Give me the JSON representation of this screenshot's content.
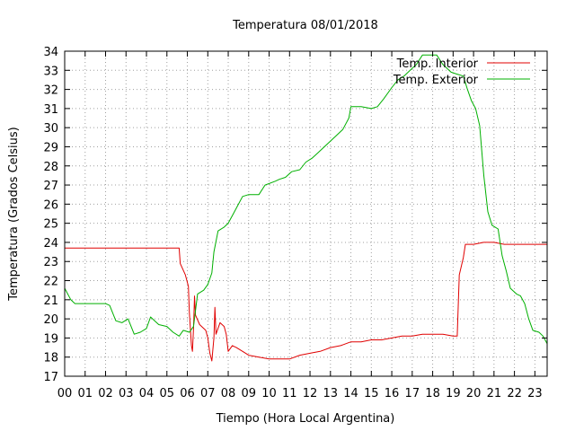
{
  "chart_data": {
    "type": "line",
    "title": "Temperatura 08/01/2018",
    "xlabel": "Tiempo (Hora Local Argentina)",
    "ylabel": "Temperatura (Grados Celsius)",
    "xlim": [
      0,
      23.6
    ],
    "ylim": [
      17,
      34
    ],
    "x_ticks": [
      "00",
      "01",
      "02",
      "03",
      "04",
      "05",
      "06",
      "07",
      "08",
      "09",
      "10",
      "11",
      "12",
      "13",
      "14",
      "15",
      "16",
      "17",
      "18",
      "19",
      "20",
      "21",
      "22",
      "23"
    ],
    "y_ticks": [
      17,
      18,
      19,
      20,
      21,
      22,
      23,
      24,
      25,
      26,
      27,
      28,
      29,
      30,
      31,
      32,
      33,
      34
    ],
    "grid": true,
    "legend_position": "top-right",
    "series": [
      {
        "name": "Temp. Interior",
        "color": "#e00000",
        "points": [
          [
            0,
            23.7
          ],
          [
            1,
            23.7
          ],
          [
            2,
            23.7
          ],
          [
            3,
            23.7
          ],
          [
            4,
            23.7
          ],
          [
            5,
            23.7
          ],
          [
            5.6,
            23.7
          ],
          [
            5.65,
            22.9
          ],
          [
            5.9,
            22.3
          ],
          [
            6.05,
            21.7
          ],
          [
            6.1,
            20.3
          ],
          [
            6.2,
            18.6
          ],
          [
            6.25,
            18.3
          ],
          [
            6.3,
            19.5
          ],
          [
            6.35,
            21.2
          ],
          [
            6.4,
            20.2
          ],
          [
            6.6,
            19.7
          ],
          [
            6.9,
            19.4
          ],
          [
            7.0,
            19.0
          ],
          [
            7.1,
            18.2
          ],
          [
            7.2,
            17.8
          ],
          [
            7.3,
            19.0
          ],
          [
            7.35,
            20.6
          ],
          [
            7.4,
            19.2
          ],
          [
            7.6,
            19.8
          ],
          [
            7.8,
            19.6
          ],
          [
            7.9,
            19.2
          ],
          [
            8.0,
            18.3
          ],
          [
            8.2,
            18.6
          ],
          [
            8.4,
            18.5
          ],
          [
            8.7,
            18.3
          ],
          [
            9.0,
            18.1
          ],
          [
            9.5,
            18.0
          ],
          [
            10,
            17.9
          ],
          [
            11,
            17.9
          ],
          [
            11.5,
            18.1
          ],
          [
            12,
            18.2
          ],
          [
            12.5,
            18.3
          ],
          [
            13,
            18.5
          ],
          [
            13.5,
            18.6
          ],
          [
            14,
            18.8
          ],
          [
            14.5,
            18.8
          ],
          [
            15,
            18.9
          ],
          [
            15.5,
            18.9
          ],
          [
            16,
            19.0
          ],
          [
            16.5,
            19.1
          ],
          [
            17,
            19.1
          ],
          [
            17.5,
            19.2
          ],
          [
            18,
            19.2
          ],
          [
            18.5,
            19.2
          ],
          [
            19.0,
            19.1
          ],
          [
            19.2,
            19.1
          ],
          [
            19.3,
            22.3
          ],
          [
            19.5,
            23.2
          ],
          [
            19.6,
            23.9
          ],
          [
            20,
            23.9
          ],
          [
            20.5,
            24.0
          ],
          [
            21,
            24.0
          ],
          [
            21.5,
            23.9
          ],
          [
            22,
            23.9
          ],
          [
            23,
            23.9
          ],
          [
            23.6,
            23.9
          ]
        ]
      },
      {
        "name": "Temp. Exterior",
        "color": "#00b000",
        "points": [
          [
            0,
            21.6
          ],
          [
            0.3,
            21.0
          ],
          [
            0.5,
            20.8
          ],
          [
            1,
            20.8
          ],
          [
            1.5,
            20.8
          ],
          [
            2,
            20.8
          ],
          [
            2.2,
            20.7
          ],
          [
            2.5,
            19.9
          ],
          [
            2.8,
            19.8
          ],
          [
            3.1,
            20.0
          ],
          [
            3.4,
            19.2
          ],
          [
            3.7,
            19.3
          ],
          [
            4.0,
            19.5
          ],
          [
            4.2,
            20.1
          ],
          [
            4.4,
            19.9
          ],
          [
            4.6,
            19.7
          ],
          [
            5.0,
            19.6
          ],
          [
            5.3,
            19.3
          ],
          [
            5.6,
            19.1
          ],
          [
            5.8,
            19.4
          ],
          [
            6.1,
            19.3
          ],
          [
            6.3,
            19.6
          ],
          [
            6.5,
            21.3
          ],
          [
            6.8,
            21.5
          ],
          [
            7.0,
            21.8
          ],
          [
            7.2,
            22.4
          ],
          [
            7.3,
            23.5
          ],
          [
            7.5,
            24.6
          ],
          [
            7.8,
            24.8
          ],
          [
            8.0,
            25.0
          ],
          [
            8.3,
            25.6
          ],
          [
            8.5,
            26.0
          ],
          [
            8.7,
            26.4
          ],
          [
            9.0,
            26.5
          ],
          [
            9.5,
            26.5
          ],
          [
            9.8,
            27.0
          ],
          [
            10.3,
            27.2
          ],
          [
            10.5,
            27.3
          ],
          [
            10.8,
            27.4
          ],
          [
            11.1,
            27.7
          ],
          [
            11.5,
            27.8
          ],
          [
            11.8,
            28.2
          ],
          [
            12.1,
            28.4
          ],
          [
            12.4,
            28.7
          ],
          [
            12.7,
            29.0
          ],
          [
            13.0,
            29.3
          ],
          [
            13.3,
            29.6
          ],
          [
            13.6,
            29.9
          ],
          [
            13.9,
            30.5
          ],
          [
            14.0,
            31.1
          ],
          [
            14.5,
            31.1
          ],
          [
            15.0,
            31.0
          ],
          [
            15.3,
            31.1
          ],
          [
            15.6,
            31.5
          ],
          [
            16.0,
            32.1
          ],
          [
            16.3,
            32.5
          ],
          [
            16.6,
            32.7
          ],
          [
            16.9,
            33.0
          ],
          [
            17.2,
            33.3
          ],
          [
            17.5,
            33.8
          ],
          [
            17.9,
            33.8
          ],
          [
            18.2,
            33.8
          ],
          [
            18.5,
            33.3
          ],
          [
            18.9,
            32.9
          ],
          [
            19.2,
            32.8
          ],
          [
            19.5,
            32.7
          ],
          [
            19.7,
            32.0
          ],
          [
            19.9,
            31.4
          ],
          [
            20.1,
            31.0
          ],
          [
            20.3,
            30.1
          ],
          [
            20.5,
            27.5
          ],
          [
            20.7,
            25.6
          ],
          [
            20.9,
            24.9
          ],
          [
            21.2,
            24.7
          ],
          [
            21.4,
            23.3
          ],
          [
            21.6,
            22.5
          ],
          [
            21.8,
            21.6
          ],
          [
            22.1,
            21.3
          ],
          [
            22.3,
            21.2
          ],
          [
            22.5,
            20.8
          ],
          [
            22.7,
            20.0
          ],
          [
            22.9,
            19.4
          ],
          [
            23.2,
            19.3
          ],
          [
            23.4,
            19.1
          ],
          [
            23.6,
            18.7
          ]
        ]
      }
    ]
  }
}
